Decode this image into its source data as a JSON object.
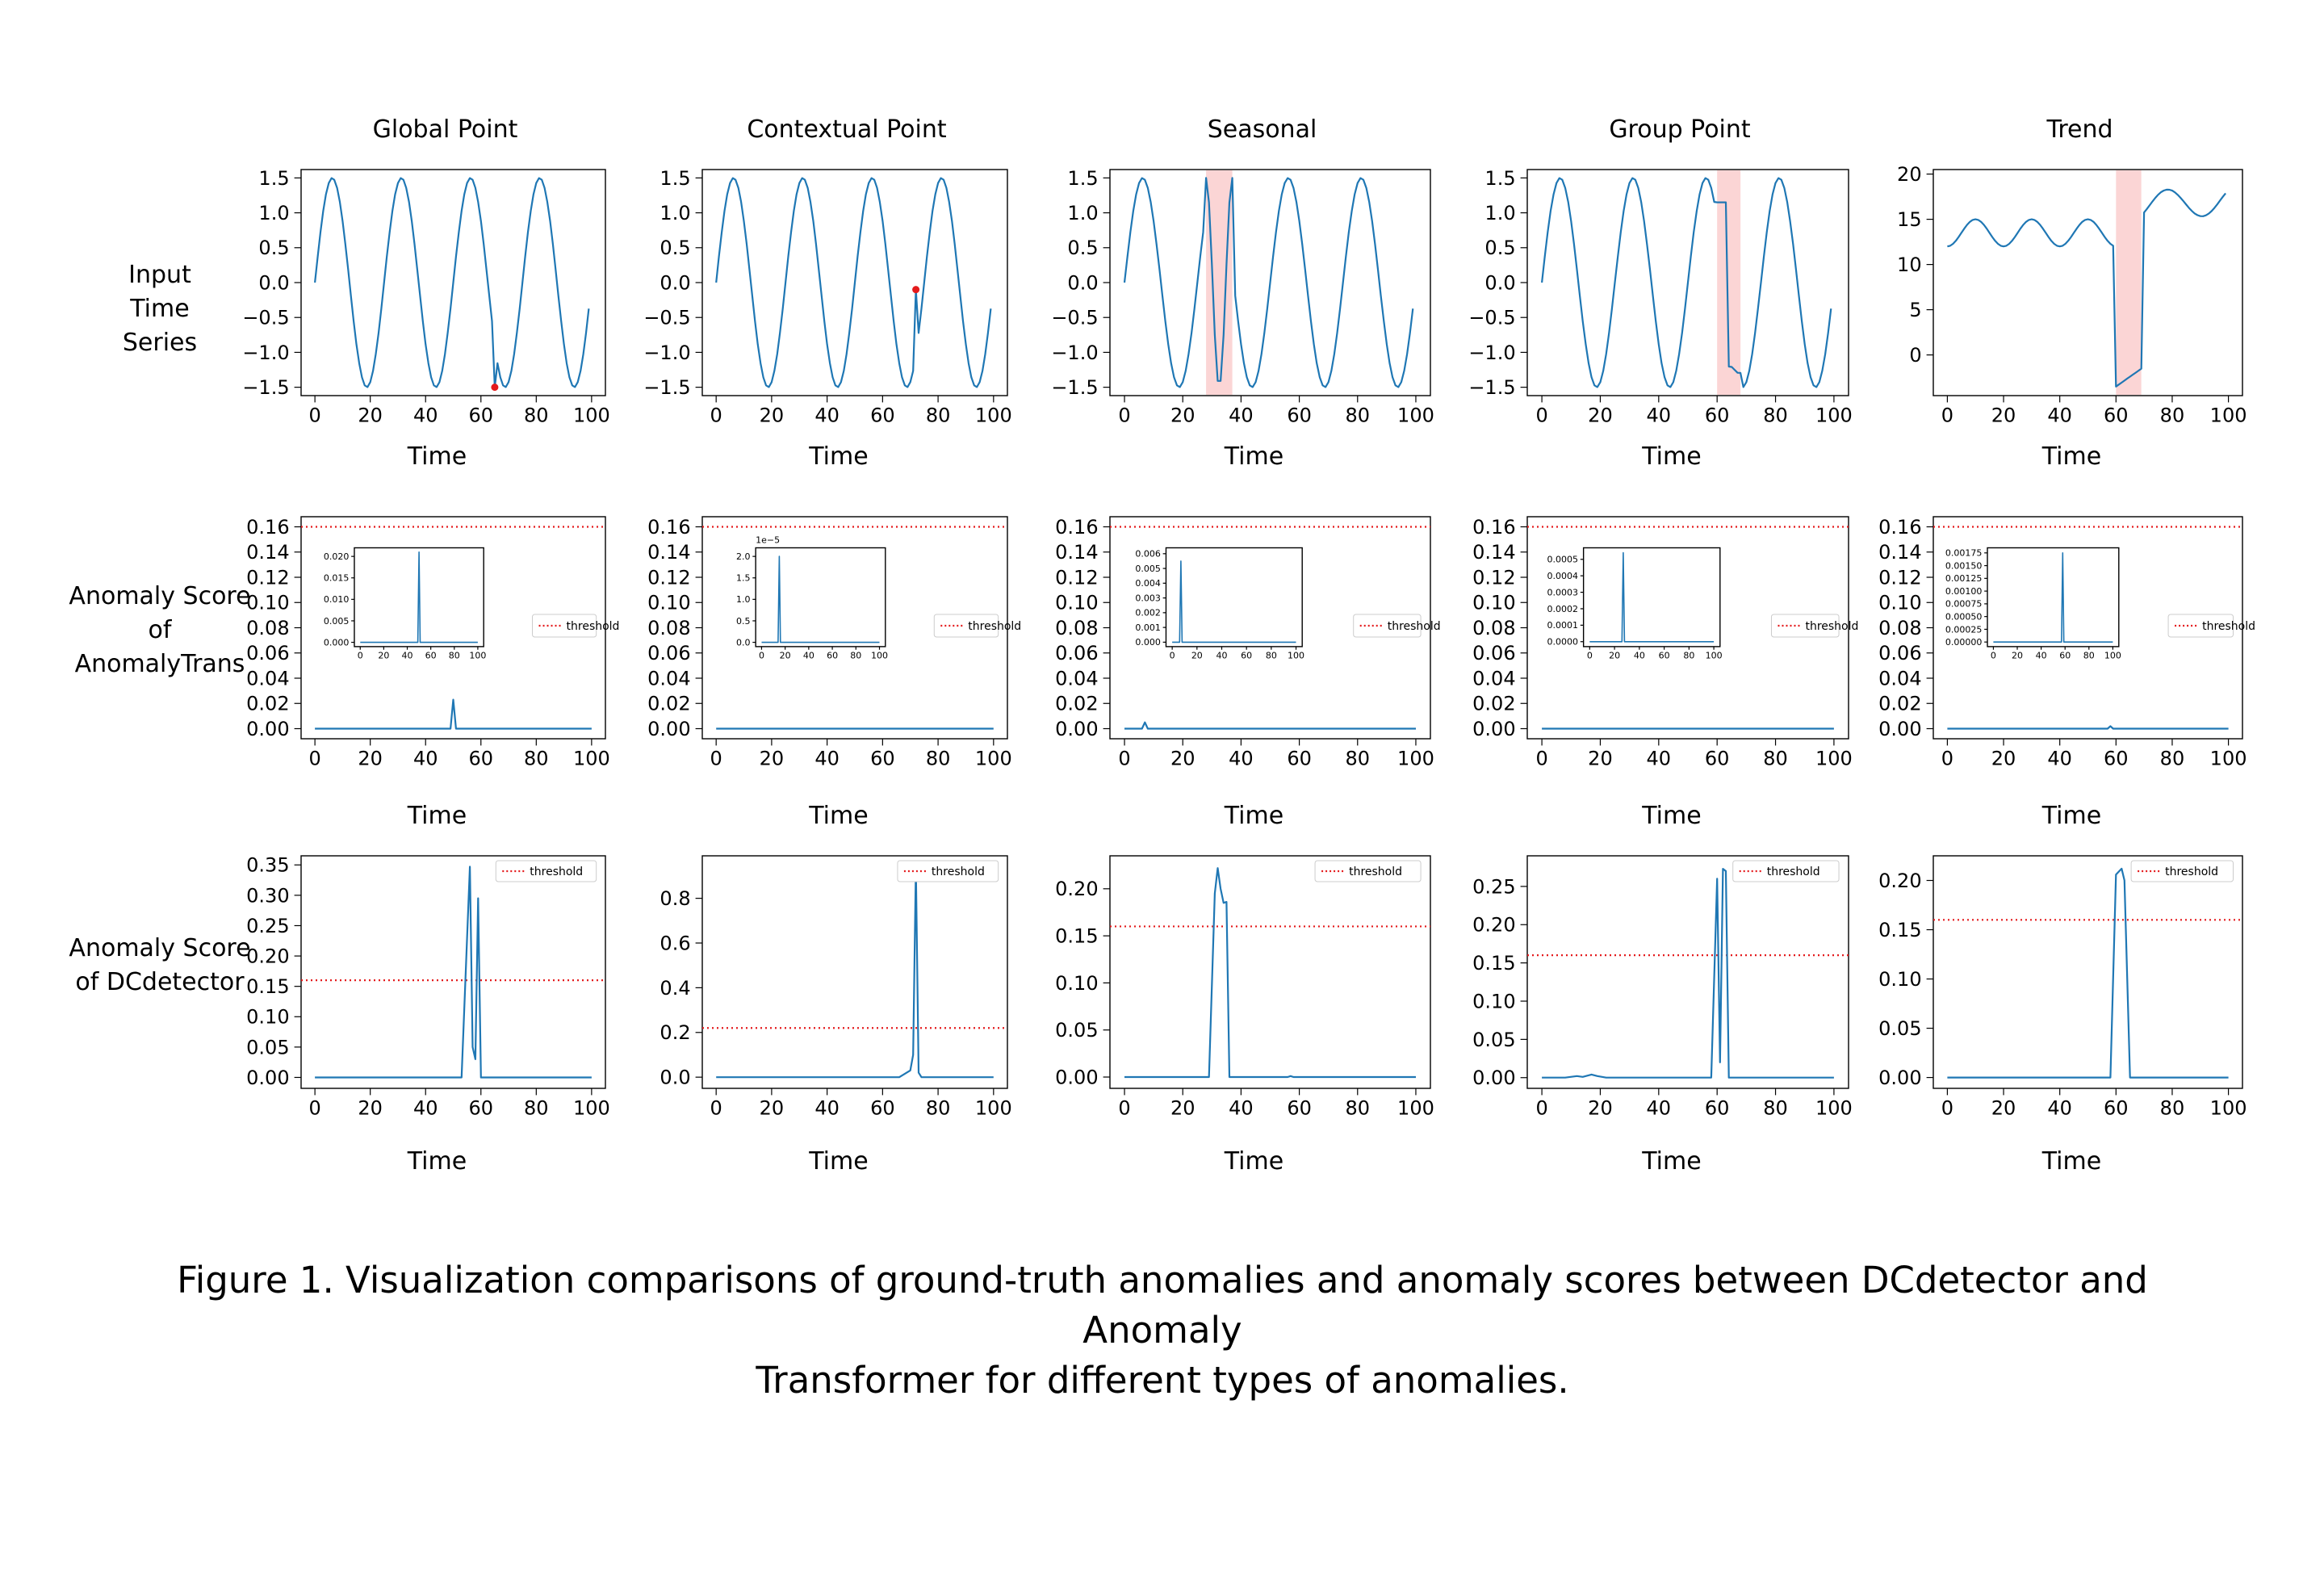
{
  "figure": {
    "column_titles": [
      "Global Point",
      "Contextual Point",
      "Seasonal",
      "Group Point",
      "Trend"
    ],
    "row_labels": [
      [
        "Input",
        "Time",
        "Series"
      ],
      [
        "Anomaly Score",
        "of",
        "AnomalyTrans"
      ],
      [
        "Anomaly Score",
        "of DCdetector"
      ]
    ],
    "xlabel": "Time",
    "legend_label": "threshold",
    "caption_line1": "Figure 1. Visualization comparisons of ground-truth anomalies and anomaly scores between DCdetector and Anomaly",
    "caption_line2": "Transformer for different types of anomalies."
  },
  "colors": {
    "series": "#1f77b4",
    "threshold": "#e41a1c",
    "marker": "#e41a1c",
    "shade": "#fbd5d5",
    "axis": "#000000"
  },
  "chart_data": [
    {
      "id": "input-global",
      "type": "line",
      "title": "Global Point",
      "xlabel": "Time",
      "xlim": [
        -5,
        105
      ],
      "ylim": [
        -1.62,
        1.62
      ],
      "xticks": [
        0,
        20,
        40,
        60,
        80,
        100
      ],
      "yticks": [
        -1.5,
        -1.0,
        -0.5,
        0.0,
        0.5,
        1.0,
        1.5
      ],
      "ytick_labels": [
        "−1.5",
        "−1.0",
        "−0.5",
        "0.0",
        "0.5",
        "1.0",
        "1.5"
      ],
      "generator": "sine",
      "period": 25,
      "amplitude": 1.5,
      "anomaly": {
        "kind": "point",
        "x": 65,
        "y": -1.5
      }
    },
    {
      "id": "input-contextual",
      "type": "line",
      "title": "Contextual Point",
      "xlabel": "Time",
      "xlim": [
        -5,
        105
      ],
      "ylim": [
        -1.62,
        1.62
      ],
      "xticks": [
        0,
        20,
        40,
        60,
        80,
        100
      ],
      "yticks": [
        -1.5,
        -1.0,
        -0.5,
        0.0,
        0.5,
        1.0,
        1.5
      ],
      "ytick_labels": [
        "−1.5",
        "−1.0",
        "−0.5",
        "0.0",
        "0.5",
        "1.0",
        "1.5"
      ],
      "generator": "sine",
      "period": 25,
      "amplitude": 1.5,
      "anomaly": {
        "kind": "point",
        "x": 72,
        "y": -0.1
      }
    },
    {
      "id": "input-seasonal",
      "type": "line",
      "title": "Seasonal",
      "xlabel": "Time",
      "xlim": [
        -5,
        105
      ],
      "ylim": [
        -1.62,
        1.62
      ],
      "xticks": [
        0,
        20,
        40,
        60,
        80,
        100
      ],
      "yticks": [
        -1.5,
        -1.0,
        -0.5,
        0.0,
        0.5,
        1.0,
        1.5
      ],
      "ytick_labels": [
        "−1.5",
        "−1.0",
        "−0.5",
        "0.0",
        "0.5",
        "1.0",
        "1.5"
      ],
      "generator": "sine",
      "period": 25,
      "amplitude": 1.5,
      "anomaly": {
        "kind": "seasonal",
        "start": 28,
        "end": 37
      }
    },
    {
      "id": "input-group",
      "type": "line",
      "title": "Group Point",
      "xlabel": "Time",
      "xlim": [
        -5,
        105
      ],
      "ylim": [
        -1.62,
        1.62
      ],
      "xticks": [
        0,
        20,
        40,
        60,
        80,
        100
      ],
      "yticks": [
        -1.5,
        -1.0,
        -0.5,
        0.0,
        0.5,
        1.0,
        1.5
      ],
      "ytick_labels": [
        "−1.5",
        "−1.0",
        "−0.5",
        "0.0",
        "0.5",
        "1.0",
        "1.5"
      ],
      "generator": "sine",
      "period": 25,
      "amplitude": 1.5,
      "anomaly": {
        "kind": "group",
        "start": 60,
        "end": 68
      }
    },
    {
      "id": "input-trend",
      "type": "line",
      "title": "Trend",
      "xlabel": "Time",
      "xlim": [
        -5,
        105
      ],
      "ylim": [
        -4.5,
        20.5
      ],
      "xticks": [
        0,
        20,
        40,
        60,
        80,
        100
      ],
      "yticks": [
        0,
        5,
        10,
        15,
        20
      ],
      "ytick_labels": [
        "0",
        "5",
        "10",
        "15",
        "20"
      ],
      "generator": "trend",
      "anomaly": {
        "kind": "trend",
        "start": 60,
        "end": 69
      }
    },
    {
      "id": "at-global",
      "type": "line",
      "xlabel": "Time",
      "xlim": [
        -5,
        105
      ],
      "ylim": [
        -0.008,
        0.168
      ],
      "threshold": 0.16,
      "xticks": [
        0,
        20,
        40,
        60,
        80,
        100
      ],
      "yticks": [
        0,
        0.02,
        0.04,
        0.06,
        0.08,
        0.1,
        0.12,
        0.14,
        0.16
      ],
      "ytick_labels": [
        "0.00",
        "0.02",
        "0.04",
        "0.06",
        "0.08",
        "0.10",
        "0.12",
        "0.14",
        "0.16"
      ],
      "spikes": [
        {
          "x": 50,
          "y": 0.023
        }
      ],
      "inset": {
        "xlim": [
          -5,
          105
        ],
        "ylim": [
          -0.001,
          0.022
        ],
        "xticks": [
          0,
          20,
          40,
          60,
          80,
          100
        ],
        "yticks": [
          0,
          0.005,
          0.01,
          0.015,
          0.02
        ],
        "ytick_labels": [
          "0.000",
          "0.005",
          "0.010",
          "0.015",
          "0.020"
        ],
        "spikes": [
          {
            "x": 50,
            "y": 0.021
          }
        ]
      }
    },
    {
      "id": "at-contextual",
      "type": "line",
      "xlabel": "Time",
      "xlim": [
        -5,
        105
      ],
      "ylim": [
        -0.008,
        0.168
      ],
      "threshold": 0.16,
      "xticks": [
        0,
        20,
        40,
        60,
        80,
        100
      ],
      "yticks": [
        0,
        0.02,
        0.04,
        0.06,
        0.08,
        0.1,
        0.12,
        0.14,
        0.16
      ],
      "ytick_labels": [
        "0.00",
        "0.02",
        "0.04",
        "0.06",
        "0.08",
        "0.10",
        "0.12",
        "0.14",
        "0.16"
      ],
      "spikes": [],
      "inset": {
        "xlim": [
          -5,
          105
        ],
        "ylim": [
          -0.1,
          2.2
        ],
        "xticks": [
          0,
          20,
          40,
          60,
          80,
          100
        ],
        "yticks": [
          0,
          0.5,
          1.0,
          1.5,
          2.0
        ],
        "ytick_labels": [
          "0.0",
          "0.5",
          "1.0",
          "1.5",
          "2.0"
        ],
        "offset_text": "1e−5",
        "spikes": [
          {
            "x": 15,
            "y": 2.0
          }
        ]
      }
    },
    {
      "id": "at-seasonal",
      "type": "line",
      "xlabel": "Time",
      "xlim": [
        -5,
        105
      ],
      "ylim": [
        -0.008,
        0.168
      ],
      "threshold": 0.16,
      "xticks": [
        0,
        20,
        40,
        60,
        80,
        100
      ],
      "yticks": [
        0,
        0.02,
        0.04,
        0.06,
        0.08,
        0.1,
        0.12,
        0.14,
        0.16
      ],
      "ytick_labels": [
        "0.00",
        "0.02",
        "0.04",
        "0.06",
        "0.08",
        "0.10",
        "0.12",
        "0.14",
        "0.16"
      ],
      "spikes": [
        {
          "x": 7,
          "y": 0.005
        }
      ],
      "inset": {
        "xlim": [
          -5,
          105
        ],
        "ylim": [
          -0.0003,
          0.0064
        ],
        "xticks": [
          0,
          20,
          40,
          60,
          80,
          100
        ],
        "yticks": [
          0,
          0.001,
          0.002,
          0.003,
          0.004,
          0.005,
          0.006
        ],
        "ytick_labels": [
          "0.000",
          "0.001",
          "0.002",
          "0.003",
          "0.004",
          "0.005",
          "0.006"
        ],
        "spikes": [
          {
            "x": 7,
            "y": 0.0055
          }
        ]
      }
    },
    {
      "id": "at-group",
      "type": "line",
      "xlabel": "Time",
      "xlim": [
        -5,
        105
      ],
      "ylim": [
        -0.008,
        0.168
      ],
      "threshold": 0.16,
      "xticks": [
        0,
        20,
        40,
        60,
        80,
        100
      ],
      "yticks": [
        0,
        0.02,
        0.04,
        0.06,
        0.08,
        0.1,
        0.12,
        0.14,
        0.16
      ],
      "ytick_labels": [
        "0.00",
        "0.02",
        "0.04",
        "0.06",
        "0.08",
        "0.10",
        "0.12",
        "0.14",
        "0.16"
      ],
      "spikes": [],
      "inset": {
        "xlim": [
          -5,
          105
        ],
        "ylim": [
          -3e-05,
          0.00057
        ],
        "xticks": [
          0,
          20,
          40,
          60,
          80,
          100
        ],
        "yticks": [
          0,
          0.0001,
          0.0002,
          0.0003,
          0.0004,
          0.0005
        ],
        "ytick_labels": [
          "0.0000",
          "0.0001",
          "0.0002",
          "0.0003",
          "0.0004",
          "0.0005"
        ],
        "spikes": [
          {
            "x": 27,
            "y": 0.00054
          }
        ]
      }
    },
    {
      "id": "at-trend",
      "type": "line",
      "xlabel": "Time",
      "xlim": [
        -5,
        105
      ],
      "ylim": [
        -0.008,
        0.168
      ],
      "threshold": 0.16,
      "xticks": [
        0,
        20,
        40,
        60,
        80,
        100
      ],
      "yticks": [
        0,
        0.02,
        0.04,
        0.06,
        0.08,
        0.1,
        0.12,
        0.14,
        0.16
      ],
      "ytick_labels": [
        "0.00",
        "0.02",
        "0.04",
        "0.06",
        "0.08",
        "0.10",
        "0.12",
        "0.14",
        "0.16"
      ],
      "spikes": [
        {
          "x": 58,
          "y": 0.002
        }
      ],
      "inset": {
        "xlim": [
          -5,
          105
        ],
        "ylim": [
          -9e-05,
          0.00185
        ],
        "xticks": [
          0,
          20,
          40,
          60,
          80,
          100
        ],
        "yticks": [
          0,
          0.00025,
          0.0005,
          0.00075,
          0.001,
          0.00125,
          0.0015,
          0.00175
        ],
        "ytick_labels": [
          "0.00000",
          "0.00025",
          "0.00050",
          "0.00075",
          "0.00100",
          "0.00125",
          "0.00150",
          "0.00175"
        ],
        "spikes": [
          {
            "x": 58,
            "y": 0.00175
          }
        ]
      }
    },
    {
      "id": "dc-global",
      "type": "line",
      "xlabel": "Time",
      "xlim": [
        -5,
        105
      ],
      "ylim": [
        -0.018,
        0.365
      ],
      "threshold": 0.16,
      "xticks": [
        0,
        20,
        40,
        60,
        80,
        100
      ],
      "yticks": [
        0,
        0.05,
        0.1,
        0.15,
        0.2,
        0.25,
        0.3,
        0.35
      ],
      "ytick_labels": [
        "0.00",
        "0.05",
        "0.10",
        "0.15",
        "0.20",
        "0.25",
        "0.30",
        "0.35"
      ],
      "points": [
        [
          0,
          0
        ],
        [
          53,
          0
        ],
        [
          56,
          0.347
        ],
        [
          57,
          0.05
        ],
        [
          58,
          0.03
        ],
        [
          59,
          0.295
        ],
        [
          60,
          0
        ],
        [
          100,
          0
        ]
      ]
    },
    {
      "id": "dc-contextual",
      "type": "line",
      "xlabel": "Time",
      "xlim": [
        -5,
        105
      ],
      "ylim": [
        -0.05,
        0.99
      ],
      "threshold": 0.22,
      "xticks": [
        0,
        20,
        40,
        60,
        80,
        100
      ],
      "yticks": [
        0,
        0.2,
        0.4,
        0.6,
        0.8
      ],
      "ytick_labels": [
        "0.0",
        "0.2",
        "0.4",
        "0.6",
        "0.8"
      ],
      "points": [
        [
          0,
          0
        ],
        [
          66,
          0
        ],
        [
          70,
          0.03
        ],
        [
          71,
          0.1
        ],
        [
          72,
          0.94
        ],
        [
          73,
          0.02
        ],
        [
          74,
          0
        ],
        [
          100,
          0
        ]
      ]
    },
    {
      "id": "dc-seasonal",
      "type": "line",
      "xlabel": "Time",
      "xlim": [
        -5,
        105
      ],
      "ylim": [
        -0.012,
        0.235
      ],
      "threshold": 0.16,
      "xticks": [
        0,
        20,
        40,
        60,
        80,
        100
      ],
      "yticks": [
        0,
        0.05,
        0.1,
        0.15,
        0.2
      ],
      "ytick_labels": [
        "0.00",
        "0.05",
        "0.10",
        "0.15",
        "0.20"
      ],
      "points": [
        [
          0,
          0
        ],
        [
          29,
          0
        ],
        [
          31,
          0.195
        ],
        [
          32,
          0.222
        ],
        [
          33,
          0.2
        ],
        [
          34,
          0.185
        ],
        [
          35,
          0.186
        ],
        [
          36,
          0
        ],
        [
          56,
          0
        ],
        [
          57,
          0.001
        ],
        [
          58,
          0
        ],
        [
          100,
          0
        ]
      ]
    },
    {
      "id": "dc-group",
      "type": "line",
      "xlabel": "Time",
      "xlim": [
        -5,
        105
      ],
      "ylim": [
        -0.014,
        0.29
      ],
      "threshold": 0.16,
      "xticks": [
        0,
        20,
        40,
        60,
        80,
        100
      ],
      "yticks": [
        0,
        0.05,
        0.1,
        0.15,
        0.2,
        0.25
      ],
      "ytick_labels": [
        "0.00",
        "0.05",
        "0.10",
        "0.15",
        "0.20",
        "0.25"
      ],
      "points": [
        [
          0,
          0
        ],
        [
          8,
          0
        ],
        [
          12,
          0.002
        ],
        [
          14,
          0.001
        ],
        [
          17,
          0.004
        ],
        [
          19,
          0.002
        ],
        [
          22,
          0
        ],
        [
          58,
          0
        ],
        [
          60,
          0.26
        ],
        [
          61,
          0.02
        ],
        [
          62,
          0.273
        ],
        [
          63,
          0.27
        ],
        [
          64,
          0
        ],
        [
          100,
          0
        ]
      ]
    },
    {
      "id": "dc-trend",
      "type": "line",
      "xlabel": "Time",
      "xlim": [
        -5,
        105
      ],
      "ylim": [
        -0.011,
        0.225
      ],
      "threshold": 0.16,
      "xticks": [
        0,
        20,
        40,
        60,
        80,
        100
      ],
      "yticks": [
        0,
        0.05,
        0.1,
        0.15,
        0.2
      ],
      "ytick_labels": [
        "0.00",
        "0.05",
        "0.10",
        "0.15",
        "0.20"
      ],
      "points": [
        [
          0,
          0
        ],
        [
          58,
          0
        ],
        [
          60,
          0.206
        ],
        [
          62,
          0.212
        ],
        [
          63,
          0.2
        ],
        [
          65,
          0
        ],
        [
          100,
          0
        ]
      ]
    }
  ]
}
